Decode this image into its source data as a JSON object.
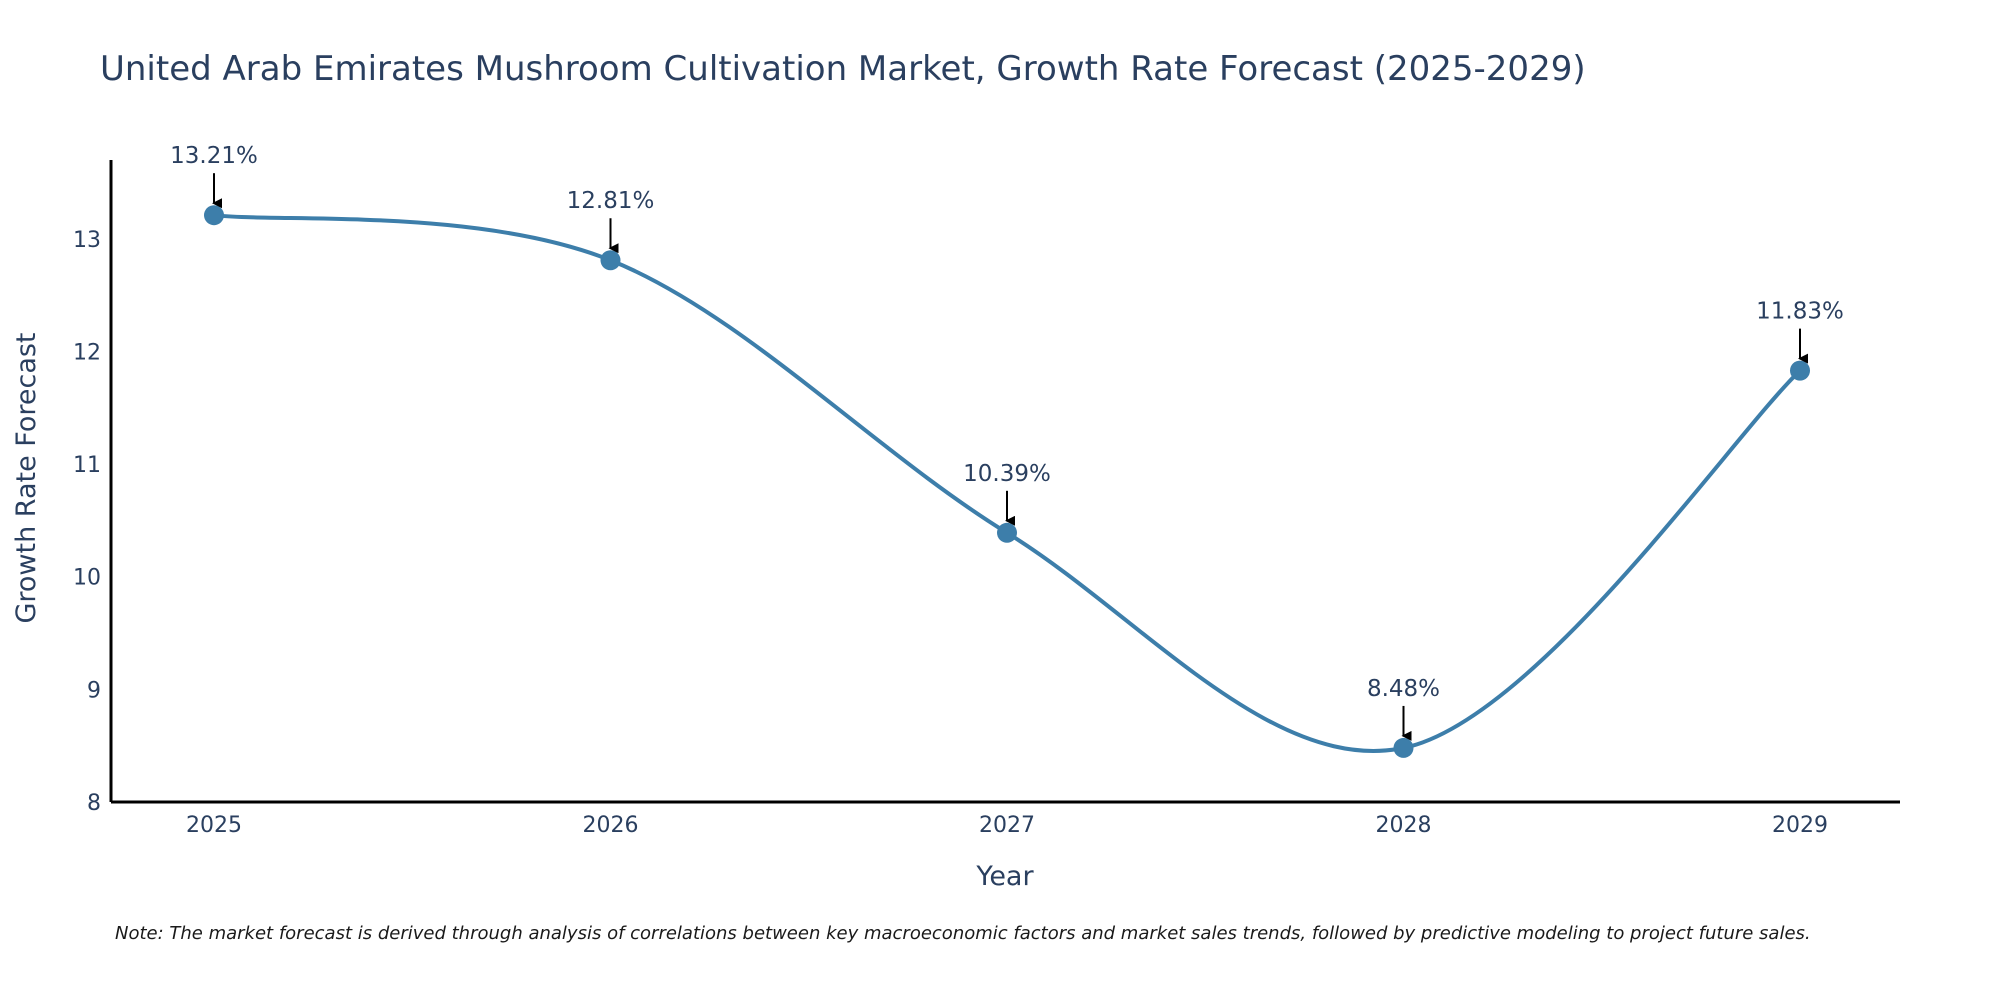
{
  "chart_data": {
    "type": "line",
    "title": "United Arab Emirates Mushroom Cultivation Market, Growth Rate Forecast (2025-2029)",
    "xlabel": "Year",
    "ylabel": "Growth Rate Forecast",
    "categories": [
      "2025",
      "2026",
      "2027",
      "2028",
      "2029"
    ],
    "values": [
      13.21,
      12.81,
      10.39,
      8.48,
      11.83
    ],
    "data_labels": [
      "13.21%",
      "12.81%",
      "10.39%",
      "8.48%",
      "11.83%"
    ],
    "y_ticks": [
      8,
      9,
      10,
      11,
      12,
      13
    ],
    "ylim": [
      8,
      13.7
    ],
    "line_shape": "spline",
    "grid": false,
    "colors": {
      "line": "#3d7eaa",
      "marker": "#3d7eaa",
      "arrow": "#000000",
      "axis": "#000000"
    },
    "note": "Note: The market forecast is derived through analysis of correlations between key macroeconomic factors and market sales trends, followed by predictive modeling to project future sales."
  }
}
